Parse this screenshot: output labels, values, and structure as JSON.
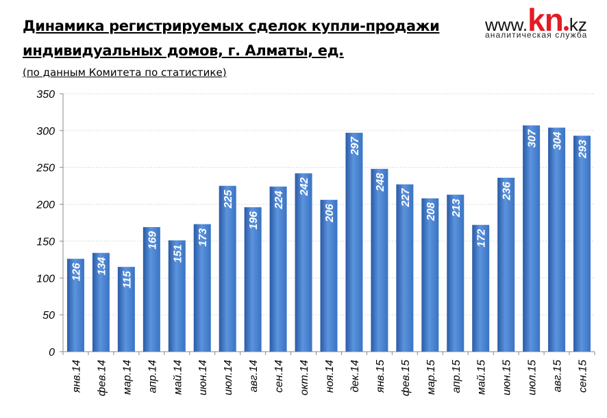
{
  "chart_data": {
    "type": "bar",
    "title": "Динамика регистрируемых сделок купли-продажи индивидуальных домов, г. Алматы, ед.",
    "title_lines": [
      "Динамика регистрируемых сделок купли-продажи",
      "индивидуальных домов, г. Алматы, ед."
    ],
    "subtitle": "(по данным Комитета по статистике)",
    "xlabel": "",
    "ylabel": "",
    "ylim": [
      0,
      350
    ],
    "yticks": [
      0,
      50,
      100,
      150,
      200,
      250,
      300,
      350
    ],
    "grid": true,
    "categories": [
      "янв.14",
      "фев.14",
      "мар.14",
      "апр.14",
      "май.14",
      "июн.14",
      "июл.14",
      "авг.14",
      "сен.14",
      "окт.14",
      "ноя.14",
      "дек.14",
      "янв.15",
      "фев.15",
      "мар.15",
      "апр.15",
      "май.15",
      "июн.15",
      "июл.15",
      "авг.15",
      "сен.15"
    ],
    "values": [
      126,
      134,
      115,
      169,
      151,
      173,
      225,
      196,
      224,
      242,
      206,
      297,
      248,
      227,
      208,
      213,
      172,
      236,
      307,
      304,
      293
    ],
    "bar_color": "#3a73c3",
    "bar_color_light": "#5b93dd",
    "bar_color_dark": "#2a5aa5",
    "label_color": "#ffffff"
  },
  "logo": {
    "www": "www.",
    "kn": "kn",
    "kz": "kz",
    "subtitle": "аналитическая служба",
    "accent_color": "#e31b23"
  }
}
